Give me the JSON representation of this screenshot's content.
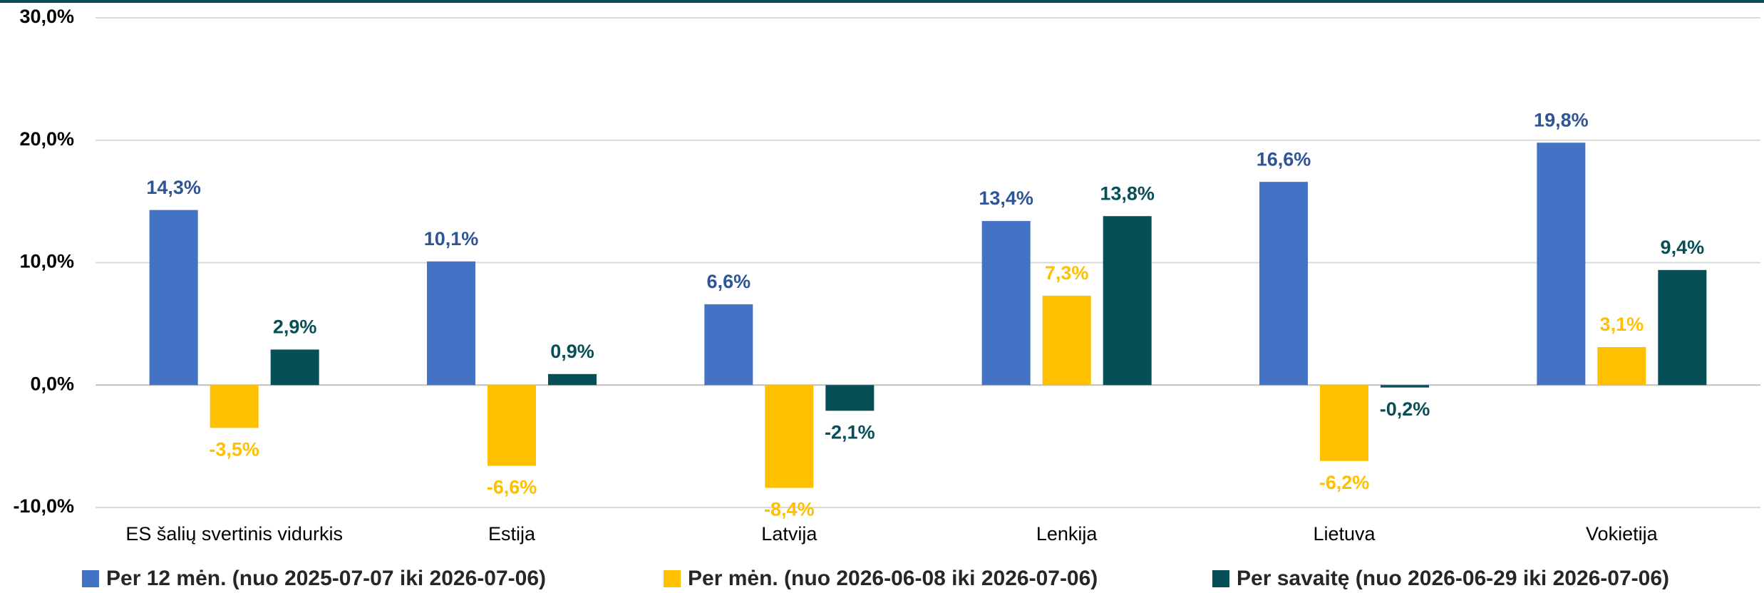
{
  "chart_data": {
    "type": "bar",
    "categories": [
      "ES šalių svertinis vidurkis",
      "Estija",
      "Latvija",
      "Lenkija",
      "Lietuva",
      "Vokietija"
    ],
    "series": [
      {
        "name": "Per 12 mėn. (nuo 2025-07-07 iki 2026-07-06)",
        "color": "#4472c4",
        "values": [
          14.3,
          10.1,
          6.6,
          13.4,
          16.6,
          19.8
        ],
        "value_labels": [
          "14,3%",
          "10,1%",
          "6,6%",
          "13,4%",
          "16,6%",
          "19,8%"
        ]
      },
      {
        "name": "Per mėn. (nuo 2026-06-08 iki 2026-07-06)",
        "color": "#ffc000",
        "values": [
          -3.5,
          -6.6,
          -8.4,
          7.3,
          -6.2,
          3.1
        ],
        "value_labels": [
          "-3,5%",
          "-6,6%",
          "-8,4%",
          "7,3%",
          "-6,2%",
          "3,1%"
        ]
      },
      {
        "name": "Per savaitę (nuo 2026-06-29 iki 2026-07-06)",
        "color": "#074f57",
        "values": [
          2.9,
          0.9,
          -2.1,
          13.8,
          -0.2,
          9.4
        ],
        "value_labels": [
          "2,9%",
          "0,9%",
          "-2,1%",
          "13,8%",
          "-0,2%",
          "9,4%"
        ]
      }
    ],
    "ylim": [
      -10,
      30
    ],
    "yticks": [
      {
        "value": -10,
        "label": "-10,0%"
      },
      {
        "value": 0,
        "label": "0,0%"
      },
      {
        "value": 10,
        "label": "10,0%"
      },
      {
        "value": 20,
        "label": "20,0%"
      },
      {
        "value": 30,
        "label": "30,0%"
      }
    ],
    "grid": true,
    "legend": "bottom"
  }
}
